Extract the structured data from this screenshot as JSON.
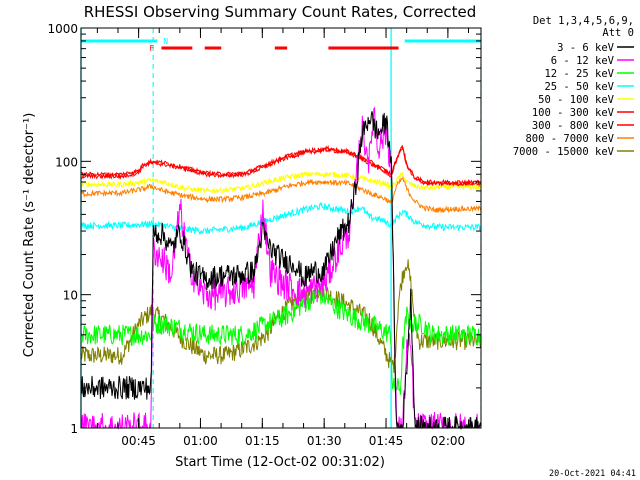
{
  "chart_data": {
    "type": "line",
    "title": "RHESSI Observing Summary Count Rates, Corrected",
    "xlabel": "Start Time (12-Oct-02 00:31:02)",
    "ylabel": "Corrected Count Rate (s⁻¹ detector⁻¹)",
    "yscale": "log",
    "ylim": [
      1,
      1000
    ],
    "xlim_minutes": [
      0,
      97
    ],
    "xticks": [
      {
        "label": "00:45",
        "minutes": 13.97
      },
      {
        "label": "01:00",
        "minutes": 28.97
      },
      {
        "label": "01:15",
        "minutes": 43.97
      },
      {
        "label": "01:30",
        "minutes": 58.97
      },
      {
        "label": "01:45",
        "minutes": 73.97
      },
      {
        "label": "02:00",
        "minutes": 88.97
      }
    ],
    "yticks": [
      {
        "label": "1",
        "value": 1
      },
      {
        "label": "10",
        "value": 10
      },
      {
        "label": "100",
        "value": 100
      },
      {
        "label": "1000",
        "value": 1000
      }
    ],
    "legend": {
      "header1": "Det 1,3,4,5,6,9,",
      "header2": "Att 0",
      "placement": "right"
    },
    "series": [
      {
        "name": "3 - 6 keV",
        "color": "#000000",
        "x": [
          0,
          17,
          17.5,
          20,
          22,
          24,
          27,
          30,
          34,
          38,
          42,
          44,
          46,
          49,
          52,
          54,
          56,
          59,
          62,
          65,
          66.5,
          68,
          70,
          72,
          74,
          75.2,
          76.5,
          78,
          79,
          80,
          81,
          81.5,
          82,
          85,
          90,
          97
        ],
        "y": [
          2,
          2,
          30,
          28,
          22,
          30,
          15,
          13,
          14,
          14,
          15,
          30,
          22,
          18,
          17,
          13,
          15,
          15,
          26,
          35,
          60,
          150,
          220,
          160,
          200,
          110,
          1,
          1,
          3,
          10,
          1,
          1,
          1,
          1,
          1,
          1
        ]
      },
      {
        "name": "6 - 12 keV",
        "color": "#ff00ff",
        "x": [
          0,
          17,
          17.5,
          20,
          22,
          24,
          26,
          28,
          30,
          34,
          38,
          42,
          44,
          46,
          49,
          52,
          54,
          56,
          59,
          62,
          65,
          66.5,
          68,
          70,
          71,
          72,
          74,
          75.2,
          76.5,
          78,
          79,
          79.5,
          80,
          81,
          90,
          97
        ],
        "y": [
          1,
          1,
          22,
          18,
          14,
          45,
          18,
          12,
          10,
          10,
          11,
          12,
          45,
          15,
          12,
          11,
          10,
          11,
          12,
          20,
          30,
          60,
          180,
          100,
          250,
          130,
          170,
          95,
          1,
          1,
          4,
          4,
          4,
          1,
          1,
          1
        ]
      },
      {
        "name": "12 - 25 keV",
        "color": "#00ff00",
        "x": [
          0,
          17,
          17.5,
          20,
          25,
          30,
          40,
          45,
          50,
          55,
          58,
          60,
          62,
          65,
          70,
          75.2,
          75.5,
          76.5,
          77.5,
          78,
          79,
          80,
          81,
          83,
          85,
          90,
          97
        ],
        "y": [
          5,
          5,
          6,
          6,
          5.5,
          5,
          5,
          6,
          7,
          9,
          10,
          9,
          8,
          7,
          6,
          5,
          2,
          2,
          2,
          4,
          7,
          6,
          6,
          6,
          5,
          5,
          5
        ]
      },
      {
        "name": "25 - 50 keV",
        "color": "#00ffff",
        "x": [
          0,
          10,
          17,
          20,
          25,
          30,
          35,
          40,
          45,
          50,
          55,
          58,
          62,
          65,
          68,
          70,
          72,
          74,
          75.2,
          77,
          78,
          79,
          81,
          84,
          87,
          90,
          95,
          97
        ],
        "y": [
          33,
          33,
          34,
          33,
          31,
          30,
          31,
          32,
          36,
          40,
          44,
          46,
          44,
          42,
          45,
          38,
          37,
          35,
          33,
          39,
          42,
          40,
          35,
          33,
          32,
          32,
          32,
          32
        ]
      },
      {
        "name": "50 - 100 keV",
        "color": "#ffff00",
        "x": [
          0,
          10,
          15,
          17,
          20,
          25,
          30,
          35,
          40,
          45,
          50,
          55,
          60,
          65,
          70,
          74,
          75.2,
          77,
          78,
          79,
          81,
          84,
          87,
          90,
          97
        ],
        "y": [
          67,
          67,
          70,
          72,
          70,
          63,
          60,
          61,
          63,
          70,
          76,
          80,
          80,
          78,
          72,
          68,
          63,
          75,
          80,
          70,
          65,
          63,
          64,
          64,
          64
        ]
      },
      {
        "name": "100 - 300 keV",
        "color": "#ff0000",
        "x": [
          0,
          10,
          14,
          15,
          17,
          20,
          25,
          30,
          35,
          40,
          45,
          50,
          55,
          60,
          65,
          70,
          74,
          75.2,
          77,
          78,
          79,
          81,
          84,
          87,
          90,
          97
        ],
        "y": [
          80,
          80,
          85,
          95,
          100,
          98,
          90,
          82,
          80,
          82,
          95,
          110,
          120,
          125,
          118,
          100,
          85,
          80,
          115,
          130,
          95,
          75,
          70,
          70,
          70,
          70
        ]
      },
      {
        "name": "300 - 800 keV",
        "color": "#ff0000",
        "x": [
          0,
          10,
          14,
          15,
          17,
          20,
          25,
          30,
          35,
          40,
          45,
          50,
          55,
          60,
          65,
          70,
          74,
          75.2,
          77,
          78,
          79,
          81,
          84,
          87,
          90,
          97
        ],
        "y": [
          77,
          77,
          82,
          92,
          97,
          95,
          88,
          80,
          78,
          80,
          92,
          107,
          117,
          122,
          115,
          97,
          82,
          78,
          112,
          127,
          92,
          73,
          68,
          68,
          68,
          68
        ]
      },
      {
        "name": "800 - 7000 keV",
        "color": "#ff8000",
        "x": [
          0,
          10,
          15,
          17,
          20,
          25,
          30,
          35,
          40,
          45,
          50,
          55,
          60,
          65,
          70,
          74,
          75.2,
          76.5,
          78,
          79,
          81,
          83,
          86,
          90,
          97
        ],
        "y": [
          57,
          58,
          62,
          65,
          60,
          55,
          52,
          52,
          54,
          58,
          65,
          70,
          70,
          68,
          58,
          52,
          48,
          65,
          75,
          62,
          50,
          45,
          43,
          44,
          44
        ]
      },
      {
        "name": "7000 - 15000 keV",
        "color": "#808000",
        "x": [
          0,
          10,
          14,
          17,
          20,
          25,
          30,
          35,
          40,
          43,
          45,
          48,
          52,
          55,
          58,
          60,
          63,
          66,
          70,
          75.2,
          76,
          77,
          78,
          79,
          80,
          81,
          82,
          84,
          86,
          90,
          97
        ],
        "y": [
          3.5,
          3.5,
          6,
          7.5,
          6.5,
          4.5,
          3.5,
          3.5,
          4,
          4.5,
          5,
          7,
          9,
          10,
          11,
          10,
          9,
          8,
          6.5,
          3,
          3,
          9,
          14,
          18,
          12,
          6,
          4.5,
          4.5,
          4.5,
          4.5,
          4.5
        ]
      }
    ],
    "flags": {
      "cyan_label": "N",
      "red_label": "F",
      "cyan_intervals_min": [
        [
          0,
          18.5
        ],
        [
          78.5,
          97
        ]
      ],
      "red_intervals_min": [
        [
          19.5,
          27
        ],
        [
          30,
          34
        ],
        [
          32.5,
          33.5
        ],
        [
          47,
          50
        ],
        [
          60,
          77
        ]
      ]
    },
    "markers": {
      "solid_cyan_min": [
        0,
        75.2
      ],
      "dashed_cyan_min": [
        17.5,
        97
      ]
    },
    "footer_date": "20-Oct-2021 04:41"
  },
  "colors": {
    "axis": "#000000",
    "title": "#000000",
    "flag_cyan": "#00ffff",
    "flag_red": "#ff0000"
  }
}
